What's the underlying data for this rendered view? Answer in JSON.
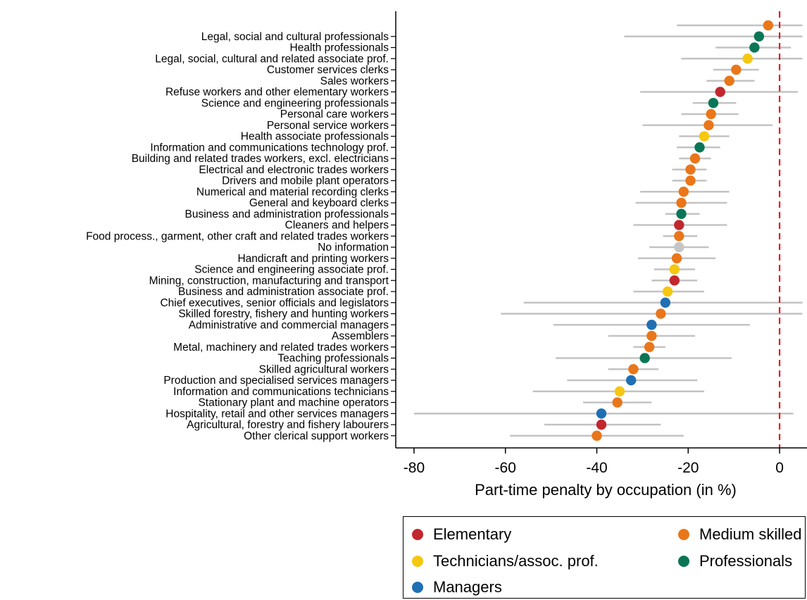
{
  "chart_data": {
    "type": "scatter",
    "subtype": "dot-plot-with-confidence-intervals",
    "xlabel": "Part-time penalty by occupation (in %)",
    "ylabel": "",
    "xlim": [
      -84,
      6
    ],
    "xticks": [
      -80,
      -60,
      -40,
      -20,
      0
    ],
    "reference_line": {
      "x": 0,
      "color": "#e41a1c",
      "style": "dashed"
    },
    "legend_position": "bottom",
    "groups": {
      "elementary": {
        "label": "Elementary",
        "color": "#c1272d"
      },
      "medium": {
        "label": "Medium skilled",
        "color": "#ea7619"
      },
      "technicians": {
        "label": "Technicians/assoc. prof.",
        "color": "#f5c710"
      },
      "professionals": {
        "label": "Professionals",
        "color": "#0a7657"
      },
      "managers": {
        "label": "Managers",
        "color": "#1f6fb4"
      },
      "noinfo": {
        "label": "",
        "color": "#c5c5c5"
      }
    },
    "legend_order": [
      "elementary",
      "medium",
      "technicians",
      "professionals",
      "managers"
    ],
    "points": [
      {
        "label": "",
        "group": "medium",
        "value": -2.5,
        "ci": [
          -22.5,
          5.0
        ]
      },
      {
        "label": "Legal, social and cultural professionals",
        "group": "professionals",
        "value": -4.5,
        "ci": [
          -34.0,
          5.0
        ]
      },
      {
        "label": "Health professionals",
        "group": "professionals",
        "value": -5.5,
        "ci": [
          -14.0,
          2.5
        ]
      },
      {
        "label": "Legal, social, cultural and related associate prof.",
        "group": "technicians",
        "value": -7.0,
        "ci": [
          -21.5,
          5.0
        ]
      },
      {
        "label": "Customer services clerks",
        "group": "medium",
        "value": -9.5,
        "ci": [
          -14.5,
          -4.5
        ]
      },
      {
        "label": "Sales workers",
        "group": "medium",
        "value": -11.0,
        "ci": [
          -16.0,
          -5.5
        ]
      },
      {
        "label": "Refuse workers and other elementary workers",
        "group": "elementary",
        "value": -13.0,
        "ci": [
          -30.5,
          4.0
        ]
      },
      {
        "label": "Science and engineering professionals",
        "group": "professionals",
        "value": -14.5,
        "ci": [
          -19.0,
          -9.5
        ]
      },
      {
        "label": "Personal care workers",
        "group": "medium",
        "value": -15.0,
        "ci": [
          -21.5,
          -9.0
        ]
      },
      {
        "label": "Personal service workers",
        "group": "medium",
        "value": -15.5,
        "ci": [
          -30.0,
          -1.5
        ]
      },
      {
        "label": "Health associate professionals",
        "group": "technicians",
        "value": -16.5,
        "ci": [
          -22.0,
          -11.0
        ]
      },
      {
        "label": "Information and communications technology prof.",
        "group": "professionals",
        "value": -17.5,
        "ci": [
          -22.5,
          -13.0
        ]
      },
      {
        "label": "Building and related trades workers, excl. electricians",
        "group": "medium",
        "value": -18.5,
        "ci": [
          -22.0,
          -15.0
        ]
      },
      {
        "label": "Electrical and electronic trades workers",
        "group": "medium",
        "value": -19.5,
        "ci": [
          -23.5,
          -16.0
        ]
      },
      {
        "label": "Drivers and mobile plant operators",
        "group": "medium",
        "value": -19.5,
        "ci": [
          -23.5,
          -16.0
        ]
      },
      {
        "label": "Numerical and material recording clerks",
        "group": "medium",
        "value": -21.0,
        "ci": [
          -30.5,
          -11.0
        ]
      },
      {
        "label": "General and keyboard clerks",
        "group": "medium",
        "value": -21.5,
        "ci": [
          -31.5,
          -11.5
        ]
      },
      {
        "label": "Business and administration professionals",
        "group": "professionals",
        "value": -21.5,
        "ci": [
          -25.0,
          -17.5
        ]
      },
      {
        "label": "Cleaners and helpers",
        "group": "elementary",
        "value": -22.0,
        "ci": [
          -32.0,
          -11.5
        ]
      },
      {
        "label": "Food process., garment, other craft and related trades workers",
        "group": "medium",
        "value": -22.0,
        "ci": [
          -25.5,
          -18.0
        ]
      },
      {
        "label": "No information",
        "group": "noinfo",
        "value": -22.0,
        "ci": [
          -28.5,
          -15.5
        ]
      },
      {
        "label": "Handicraft and printing workers",
        "group": "medium",
        "value": -22.5,
        "ci": [
          -31.0,
          -14.0
        ]
      },
      {
        "label": "Science and engineering associate prof.",
        "group": "technicians",
        "value": -23.0,
        "ci": [
          -27.5,
          -18.5
        ]
      },
      {
        "label": "Mining, construction, manufacturing and transport",
        "group": "elementary",
        "value": -23.0,
        "ci": [
          -28.0,
          -18.0
        ]
      },
      {
        "label": "Business and administration associate prof.",
        "group": "technicians",
        "value": -24.5,
        "ci": [
          -32.0,
          -16.5
        ]
      },
      {
        "label": "Chief executives, senior officials and legislators",
        "group": "managers",
        "value": -25.0,
        "ci": [
          -56.0,
          5.0
        ]
      },
      {
        "label": "Skilled forestry, fishery and hunting workers",
        "group": "medium",
        "value": -26.0,
        "ci": [
          -61.0,
          5.0
        ]
      },
      {
        "label": "Administrative and commercial managers",
        "group": "managers",
        "value": -28.0,
        "ci": [
          -49.5,
          -6.5
        ]
      },
      {
        "label": "Assemblers",
        "group": "medium",
        "value": -28.0,
        "ci": [
          -37.5,
          -18.5
        ]
      },
      {
        "label": "Metal, machinery and related trades workers",
        "group": "medium",
        "value": -28.5,
        "ci": [
          -32.0,
          -25.0
        ]
      },
      {
        "label": "Teaching professionals",
        "group": "professionals",
        "value": -29.5,
        "ci": [
          -49.0,
          -10.5
        ]
      },
      {
        "label": "Skilled agricultural workers",
        "group": "medium",
        "value": -32.0,
        "ci": [
          -37.5,
          -26.5
        ]
      },
      {
        "label": "Production and specialised services managers",
        "group": "managers",
        "value": -32.5,
        "ci": [
          -46.5,
          -18.0
        ]
      },
      {
        "label": "Information and communications technicians",
        "group": "technicians",
        "value": -35.0,
        "ci": [
          -54.0,
          -16.5
        ]
      },
      {
        "label": "Stationary plant and machine operators",
        "group": "medium",
        "value": -35.5,
        "ci": [
          -43.0,
          -28.0
        ]
      },
      {
        "label": "Hospitality, retail and other services managers",
        "group": "managers",
        "value": -39.0,
        "ci": [
          -80.0,
          3.0
        ]
      },
      {
        "label": "Agricultural, forestry and fishery labourers",
        "group": "elementary",
        "value": -39.0,
        "ci": [
          -51.5,
          -26.0
        ]
      },
      {
        "label": "Other clerical support workers",
        "group": "medium",
        "value": -40.0,
        "ci": [
          -59.0,
          -21.0
        ]
      }
    ]
  }
}
